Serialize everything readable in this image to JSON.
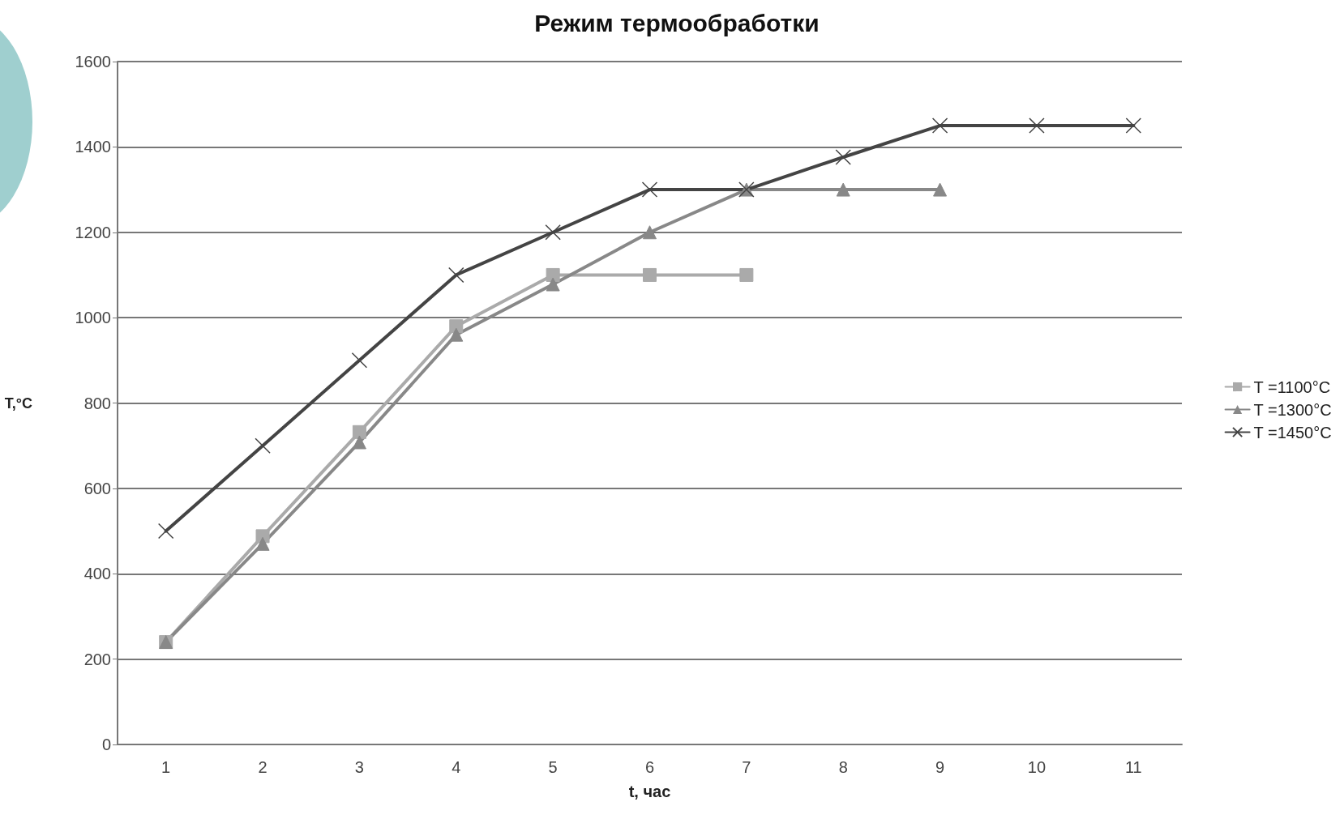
{
  "chart_data": {
    "type": "line",
    "title": "Режим термообработки",
    "xlabel": "t, час",
    "ylabel": "T,°C",
    "categories": [
      "1",
      "2",
      "3",
      "4",
      "5",
      "6",
      "7",
      "8",
      "9",
      "10",
      "11"
    ],
    "series": [
      {
        "name": "T =1100°C",
        "color": "#aaaaaa",
        "marker": "square",
        "values": [
          240,
          488,
          732,
          980,
          1100,
          1100,
          1100,
          null,
          null,
          null,
          null
        ]
      },
      {
        "name": "T =1300°C",
        "color": "#888888",
        "marker": "triangle",
        "values": [
          240,
          470,
          708,
          960,
          1078,
          1200,
          1300,
          1300,
          1300,
          null,
          null
        ]
      },
      {
        "name": "T =1450°C",
        "color": "#444444",
        "marker": "cross",
        "values": [
          500,
          700,
          900,
          1100,
          1200,
          1300,
          1300,
          1376,
          1450,
          1450,
          1450
        ]
      }
    ],
    "ylim": [
      0,
      1600
    ],
    "yticks": [
      0,
      200,
      400,
      600,
      800,
      1000,
      1200,
      1400,
      1600
    ],
    "grid": "y",
    "legend": "right",
    "line_style": "solid"
  }
}
